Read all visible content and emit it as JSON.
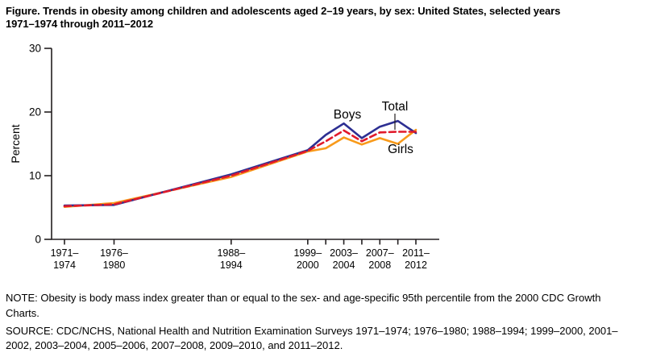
{
  "title": "Figure. Trends in obesity among children and adolescents aged 2–19 years, by sex: United States, selected years\n1971–1974 through 2011–2012",
  "note": "NOTE: Obesity is body mass index greater than or equal to the sex- and age-specific 95th percentile from the 2000 CDC Growth\nCharts.",
  "source": "SOURCE: CDC/NCHS, National Health and Nutrition Examination Surveys 1971–1974; 1976–1980; 1988–1994; 1999–2000, 2001–\n2002, 2003–2004, 2005–2006, 2007–2008, 2009–2010, and 2011–2012.",
  "chart_data": {
    "type": "line",
    "title": "Trends in obesity among children and adolescents aged 2–19 years, by sex",
    "ylabel": "Percent",
    "xlabel": "",
    "ylim": [
      0,
      30
    ],
    "yticks": [
      0,
      10,
      20,
      30
    ],
    "grid": false,
    "legend_position": "inline-annotations",
    "categories": [
      "1971–1974",
      "1976–1980",
      "1988–1994",
      "1999–2000",
      "2001–2002",
      "2003–2004",
      "2005–2006",
      "2007–2008",
      "2009–2010",
      "2011–2012"
    ],
    "x_mid_years": [
      1972.5,
      1978,
      1991,
      1999.5,
      2001.5,
      2003.5,
      2005.5,
      2007.5,
      2009.5,
      2011.5
    ],
    "xtick_labeled": [
      true,
      true,
      true,
      true,
      false,
      true,
      false,
      true,
      false,
      true
    ],
    "series": [
      {
        "name": "Boys",
        "color": "#2d2f92",
        "style": "solid",
        "values": [
          5.3,
          5.4,
          10.2,
          14.0,
          16.4,
          18.2,
          15.9,
          17.7,
          18.6,
          16.7
        ]
      },
      {
        "name": "Total",
        "color": "#e11a2b",
        "style": "dashed",
        "values": [
          5.2,
          5.5,
          10.0,
          13.9,
          15.4,
          17.1,
          15.4,
          16.8,
          16.9,
          16.9
        ]
      },
      {
        "name": "Girls",
        "color": "#f89a1a",
        "style": "solid",
        "values": [
          5.1,
          5.7,
          9.8,
          13.8,
          14.3,
          16.0,
          14.9,
          15.9,
          15.0,
          17.2
        ]
      }
    ],
    "axis_color": "#231f20"
  }
}
